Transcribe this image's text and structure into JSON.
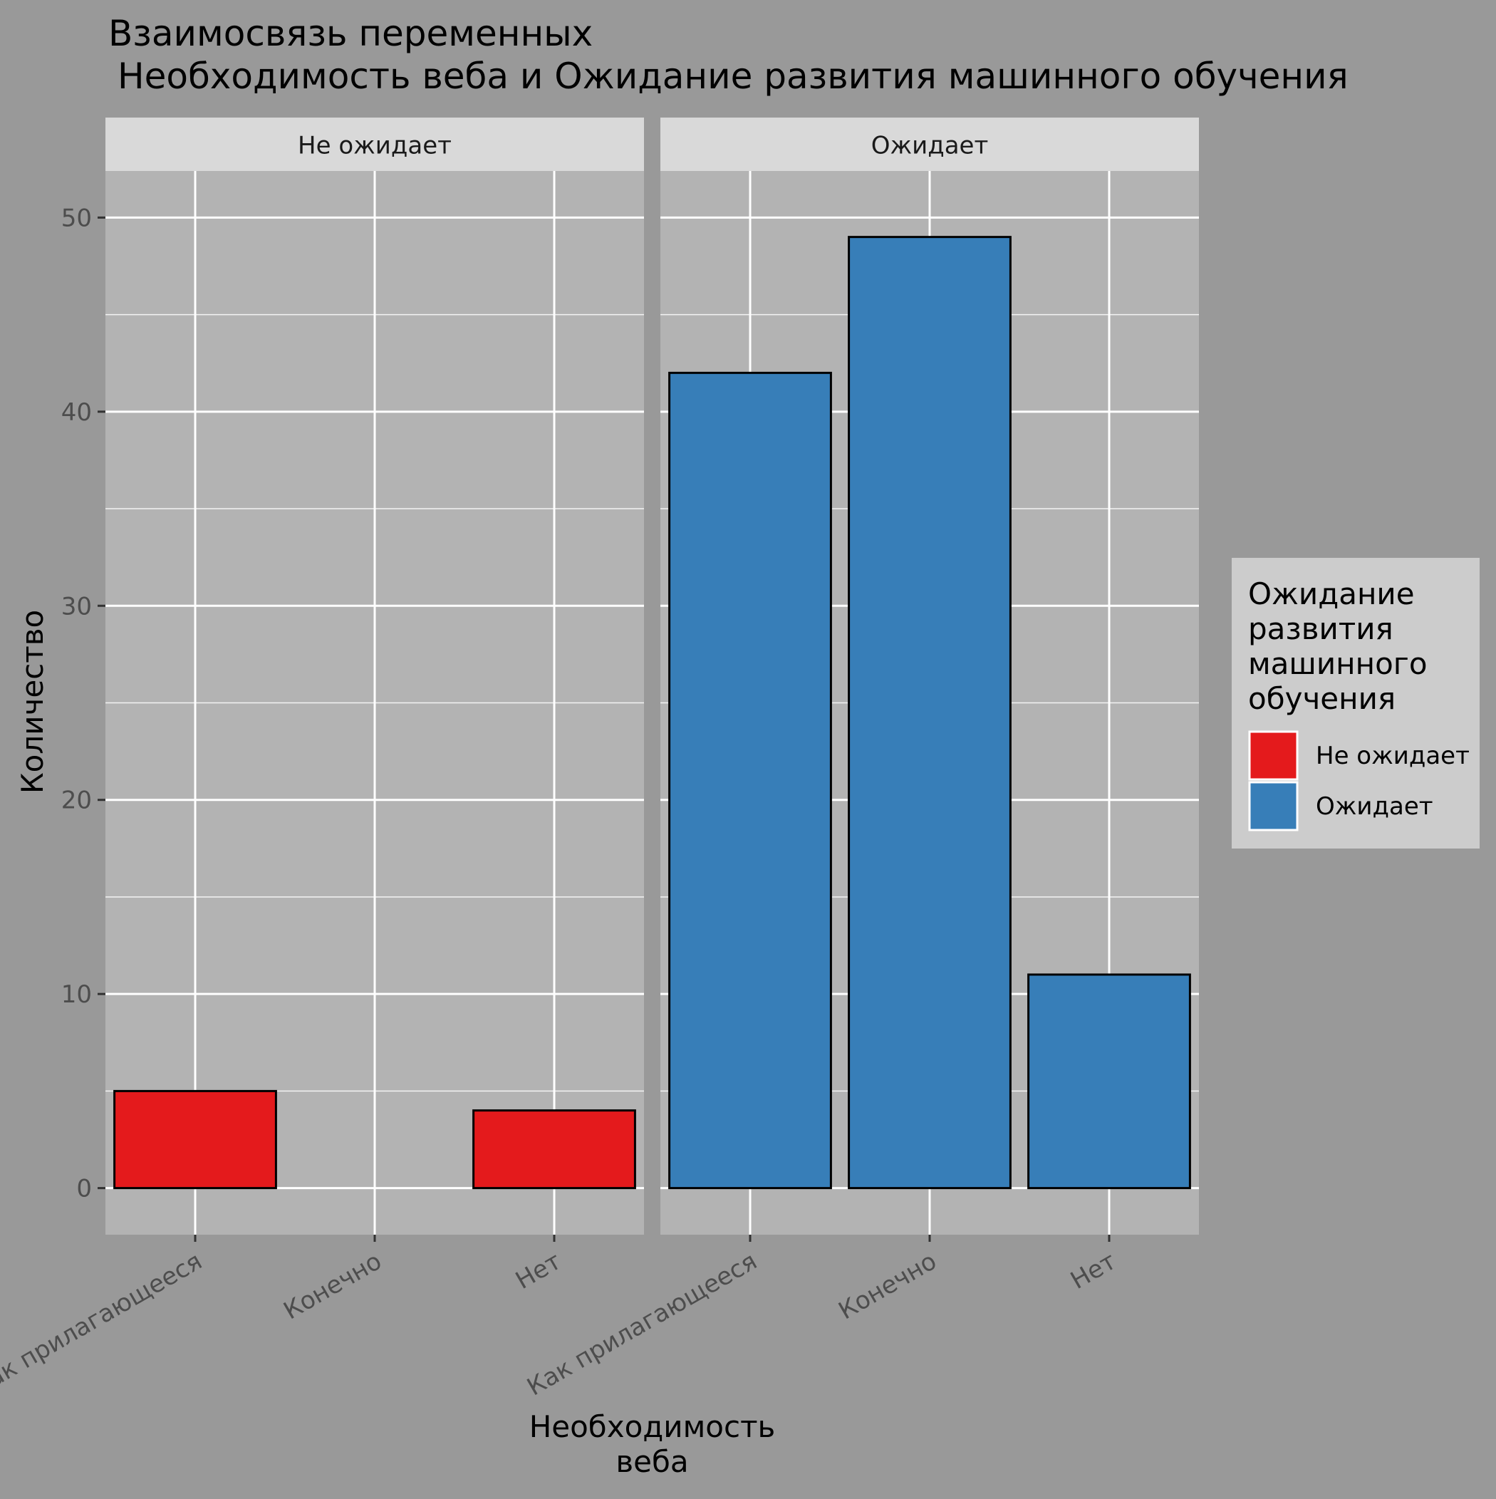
{
  "chart_data": {
    "type": "bar",
    "title": "Взаимосвязь переменных",
    "subtitle": "Необходимость веба и Ожидание развития машинного обучения",
    "xlabel": "Необходимость веба",
    "ylabel": "Количество",
    "categories": [
      "Как прилагающееся",
      "Конечно",
      "Нет"
    ],
    "ylim": [
      -2.4,
      52.4
    ],
    "yticks": [
      0,
      10,
      20,
      30,
      40,
      50
    ],
    "grid": true,
    "legend": {
      "title": "Ожидание развития машинного обучения",
      "placement": "right",
      "entries": [
        "Не ожидает",
        "Ожидает"
      ]
    },
    "facets": [
      {
        "label": "Не ожидает",
        "color": "#E41A1C",
        "values": [
          5,
          0,
          4
        ]
      },
      {
        "label": "Ожидает",
        "color": "#377EB8",
        "values": [
          42,
          49,
          11
        ]
      }
    ],
    "colors": {
      "background": "#999999",
      "panel": "#B3B3B3",
      "strip": "#D9D9D9",
      "legend_bg": "#CCCCCC",
      "grid": "#FFFFFF",
      "bar_outline": "#000000"
    }
  }
}
